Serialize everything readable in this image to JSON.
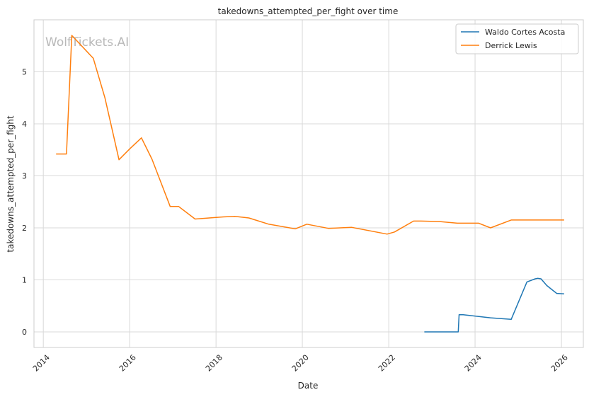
{
  "watermark": "WolfTickets.AI",
  "chart_data": {
    "type": "line",
    "title": "takedowns_attempted_per_fight over time",
    "xlabel": "Date",
    "ylabel": "takedowns_attempted_per_fight",
    "xlim": [
      "2013-10-14",
      "2026-07-05"
    ],
    "ylim": [
      -0.3,
      6.0
    ],
    "xticks": [
      "2014",
      "2016",
      "2018",
      "2020",
      "2022",
      "2024",
      "2026"
    ],
    "yticks": [
      0,
      1,
      2,
      3,
      4,
      5
    ],
    "grid": true,
    "legend_position": "top-right",
    "colors": {
      "Waldo Cortes Acosta": "#1f77b4",
      "Derrick Lewis": "#ff7f0e"
    },
    "series": [
      {
        "name": "Waldo Cortes Acosta",
        "x": [
          "2022-10-29",
          "2023-02-25",
          "2023-08-12",
          "2023-08-19",
          "2023-09-23",
          "2024-05-11",
          "2024-11-02",
          "2025-03-15",
          "2025-05-24",
          "2025-06-14",
          "2025-07-12",
          "2025-08-30",
          "2025-11-22",
          "2026-01-24"
        ],
        "y": [
          0,
          0,
          0,
          0.33,
          0.33,
          0.27,
          0.24,
          0.96,
          1.02,
          1.03,
          1.02,
          0.89,
          0.74,
          0.73
        ]
      },
      {
        "name": "Derrick Lewis",
        "x": [
          "2014-04-19",
          "2014-07-16",
          "2014-08-30",
          "2015-02-28",
          "2015-06-06",
          "2015-10-03",
          "2016-01-02",
          "2016-04-10",
          "2016-07-08",
          "2016-12-09",
          "2017-02-19",
          "2017-07-08",
          "2018-03-03",
          "2018-06-09",
          "2018-10-06",
          "2019-03-23",
          "2019-11-02",
          "2020-02-08",
          "2020-08-08",
          "2021-02-20",
          "2021-12-18",
          "2022-02-19",
          "2022-07-30",
          "2022-10-01",
          "2023-03-11",
          "2023-08-05",
          "2024-02-01",
          "2024-05-11",
          "2024-11-02",
          "2025-06-14",
          "2026-01-24"
        ],
        "y": [
          3.42,
          3.42,
          5.7,
          5.26,
          4.5,
          3.31,
          3.52,
          3.73,
          3.32,
          2.41,
          2.41,
          2.17,
          2.21,
          2.22,
          2.19,
          2.07,
          1.98,
          2.07,
          1.99,
          2.01,
          1.88,
          1.92,
          2.13,
          2.13,
          2.12,
          2.09,
          2.09,
          2.0,
          2.15,
          2.15,
          2.15
        ]
      }
    ]
  }
}
